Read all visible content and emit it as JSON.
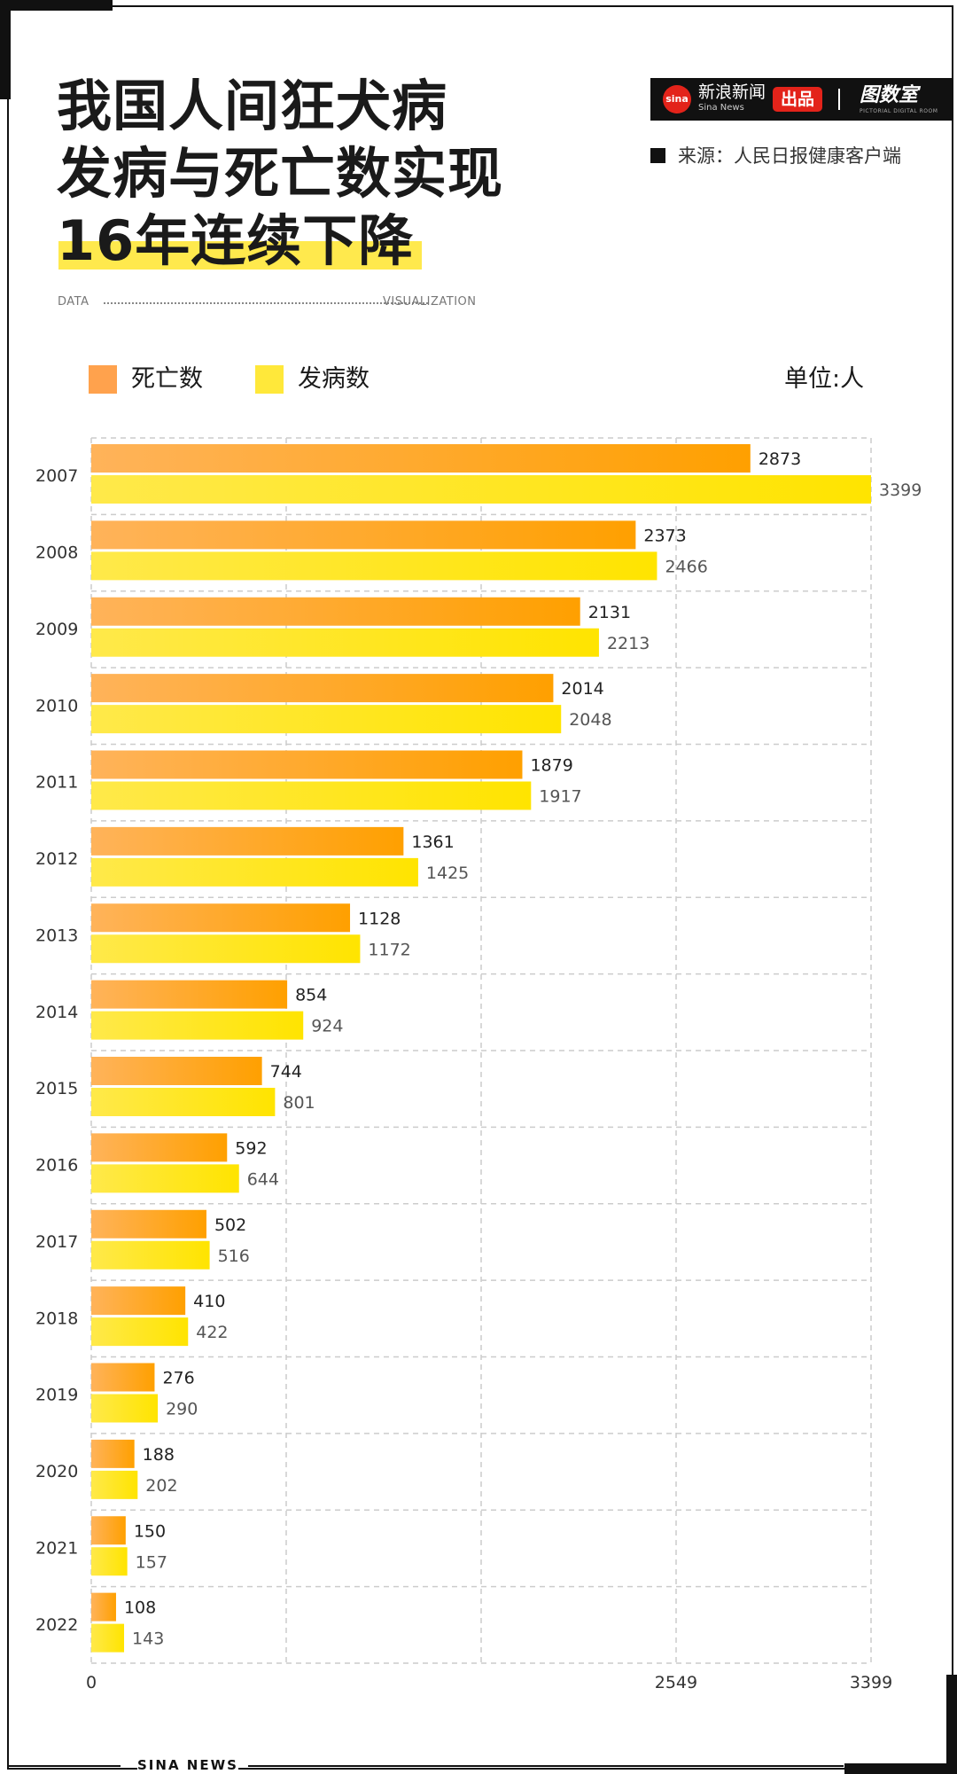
{
  "header": {
    "title_lines": [
      "我国人间狂犬病",
      "发病与死亡数实现",
      "16年连续下降"
    ],
    "data_left": "DATA",
    "data_right": "VISUALIZATION",
    "source": "来源：人民日报健康客户端"
  },
  "brand": {
    "logo_text": "sina",
    "name": "新浪新闻",
    "name_en": "Sina News",
    "tag": "出品",
    "partner": "图数室",
    "partner_en": "PICTORIAL DIGITAL ROOM"
  },
  "legend": {
    "deaths": "死亡数",
    "cases": "发病数",
    "unit": "单位:人"
  },
  "footer": {
    "text": "SINA NEWS"
  },
  "colors": {
    "deaths_start": "#ffb35a",
    "deaths_end": "#ffa000",
    "cases_start": "#ffe94a",
    "cases_end": "#ffe400",
    "grid": "#cccccc"
  },
  "chart_data": {
    "type": "bar",
    "orientation": "horizontal",
    "categories": [
      "2007",
      "2008",
      "2009",
      "2010",
      "2011",
      "2012",
      "2013",
      "2014",
      "2015",
      "2016",
      "2017",
      "2018",
      "2019",
      "2020",
      "2021",
      "2022"
    ],
    "series": [
      {
        "name": "死亡数",
        "values": [
          2873,
          2373,
          2131,
          2014,
          1879,
          1361,
          1128,
          854,
          744,
          592,
          502,
          410,
          276,
          188,
          150,
          108
        ]
      },
      {
        "name": "发病数",
        "values": [
          3399,
          2466,
          2213,
          2048,
          1917,
          1425,
          1172,
          924,
          801,
          644,
          516,
          422,
          290,
          202,
          157,
          143
        ]
      }
    ],
    "xlim": [
      0,
      3399
    ],
    "x_ticks": [
      0,
      2549,
      3399
    ],
    "grid": true,
    "legend_position": "top-left"
  }
}
